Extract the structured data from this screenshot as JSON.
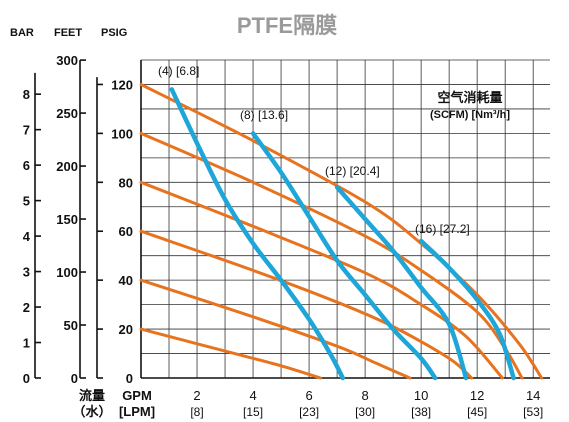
{
  "chart_data": {
    "type": "line",
    "title": "PTFE隔膜",
    "axis_headers": {
      "bar": "BAR",
      "feet": "FEET",
      "psig": "PSIG"
    },
    "bar_ticks": [
      "0",
      "1",
      "2",
      "3",
      "4",
      "5",
      "6",
      "7",
      "8"
    ],
    "feet_ticks": [
      "0",
      "50",
      "100",
      "150",
      "200",
      "250",
      "300"
    ],
    "psig_ticks": [
      "0",
      "20",
      "40",
      "60",
      "80",
      "100",
      "120"
    ],
    "ylim_psig": [
      0,
      130
    ],
    "xlim_gpm": [
      0,
      14.6
    ],
    "gpm_ticks": [
      "2",
      "4",
      "6",
      "8",
      "10",
      "12",
      "14"
    ],
    "lpm_ticks": [
      "[8]",
      "[15]",
      "[23]",
      "[30]",
      "[38]",
      "[45]",
      "[53]"
    ],
    "x_label_line1": "流量",
    "x_label_line2": "（水）",
    "x_unit_gpm": "GPM",
    "x_unit_lpm": "[LPM]",
    "air_legend": {
      "line1": "空气消耗量",
      "line2": "(SCFM) [Nm³/h]"
    },
    "air_curve_labels": [
      "(4) [6.8]",
      "(8) [13.6]",
      "(12) [20.4]",
      "(16) [27.2]"
    ],
    "colors": {
      "pressure_curves": "#e8731f",
      "air_curves": "#1ea6d8",
      "title": "#9a9a9a"
    },
    "pressure_curves": [
      {
        "points": [
          [
            0,
            120
          ],
          [
            4,
            97
          ],
          [
            8,
            72
          ],
          [
            10,
            55
          ],
          [
            12,
            34
          ],
          [
            13.5,
            14
          ],
          [
            14.3,
            0
          ]
        ]
      },
      {
        "points": [
          [
            0,
            100
          ],
          [
            4,
            80
          ],
          [
            8,
            58
          ],
          [
            10,
            44
          ],
          [
            12,
            27
          ],
          [
            13,
            12
          ],
          [
            13.6,
            0
          ]
        ]
      },
      {
        "points": [
          [
            0,
            80
          ],
          [
            4,
            62
          ],
          [
            8,
            43
          ],
          [
            10,
            30
          ],
          [
            11.6,
            17
          ],
          [
            12.9,
            0
          ]
        ]
      },
      {
        "points": [
          [
            0,
            60
          ],
          [
            4,
            44
          ],
          [
            7,
            31
          ],
          [
            9,
            21
          ],
          [
            11,
            8
          ],
          [
            11.8,
            0
          ]
        ]
      },
      {
        "points": [
          [
            0,
            40
          ],
          [
            4,
            25
          ],
          [
            7,
            13
          ],
          [
            8.4,
            6
          ],
          [
            9.6,
            0
          ]
        ]
      },
      {
        "points": [
          [
            0,
            20
          ],
          [
            3,
            11
          ],
          [
            5,
            5
          ],
          [
            6.4,
            0
          ]
        ]
      }
    ],
    "air_curves": [
      {
        "name": "(4) [6.8]",
        "points": [
          [
            1.1,
            118
          ],
          [
            2,
            96
          ],
          [
            3,
            73
          ],
          [
            4,
            55
          ],
          [
            5,
            40
          ],
          [
            6,
            24
          ],
          [
            6.8,
            9
          ],
          [
            7.2,
            0
          ]
        ]
      },
      {
        "name": "(8) [13.6]",
        "points": [
          [
            4,
            100
          ],
          [
            5,
            84
          ],
          [
            6,
            66
          ],
          [
            7,
            48
          ],
          [
            8,
            34
          ],
          [
            9,
            20
          ],
          [
            10,
            8
          ],
          [
            10.5,
            0
          ]
        ]
      },
      {
        "name": "(12) [20.4]",
        "points": [
          [
            7,
            78
          ],
          [
            8,
            65
          ],
          [
            9,
            52
          ],
          [
            10,
            37
          ],
          [
            11,
            22
          ],
          [
            11.6,
            0
          ]
        ]
      },
      {
        "name": "(16) [27.2]",
        "points": [
          [
            10,
            56
          ],
          [
            11,
            45
          ],
          [
            12,
            32
          ],
          [
            12.8,
            18
          ],
          [
            13.3,
            0
          ]
        ]
      }
    ]
  }
}
